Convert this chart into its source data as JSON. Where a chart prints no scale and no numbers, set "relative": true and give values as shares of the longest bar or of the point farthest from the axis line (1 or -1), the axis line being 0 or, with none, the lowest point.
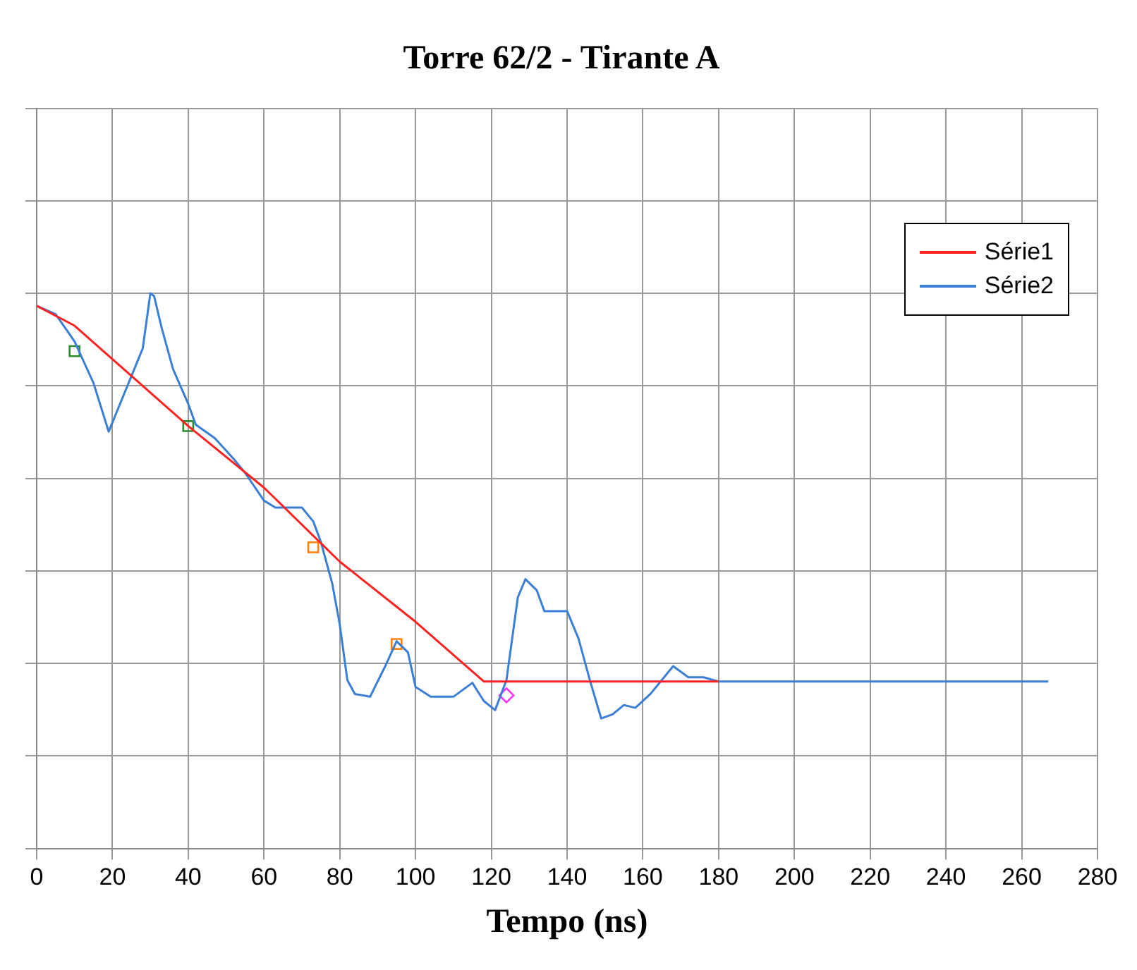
{
  "chart_data": {
    "type": "line",
    "title": "Torre 62/2 - Tirante A",
    "xlabel": "Tempo (ns)",
    "relative": true,
    "xlim": [
      0,
      280
    ],
    "xticks": [
      0,
      20,
      40,
      60,
      80,
      100,
      120,
      140,
      160,
      180,
      200,
      220,
      240,
      260,
      280
    ],
    "grid": true,
    "legend": "top right",
    "marker": "none",
    "line_style": "solid",
    "series": [
      {
        "name": "Série1",
        "color": "#ff2020",
        "x": [
          0,
          10,
          40,
          60,
          80,
          100,
          118,
          180
        ],
        "values": [
          0.973,
          0.93,
          0.713,
          0.58,
          0.42,
          0.29,
          0.161,
          0.161
        ]
      },
      {
        "name": "Série2",
        "color": "#3a7fd5",
        "x": [
          0,
          5,
          10,
          15,
          19,
          22,
          25,
          28,
          30,
          31,
          33,
          36,
          40,
          42,
          47,
          52,
          55,
          60,
          63,
          70,
          73,
          75,
          78,
          80,
          82,
          84,
          88,
          92,
          95,
          98,
          100,
          104,
          110,
          115,
          118,
          121,
          124,
          127,
          129,
          132,
          134,
          140,
          143,
          146,
          149,
          152,
          155,
          158,
          162,
          168,
          172,
          176,
          180,
          267
        ],
        "values": [
          0.973,
          0.955,
          0.896,
          0.806,
          0.701,
          0.761,
          0.821,
          0.881,
          1,
          0.994,
          0.925,
          0.836,
          0.761,
          0.716,
          0.687,
          0.642,
          0.612,
          0.552,
          0.537,
          0.537,
          0.507,
          0.463,
          0.373,
          0.284,
          0.164,
          0.134,
          0.128,
          0.194,
          0.248,
          0.224,
          0.149,
          0.128,
          0.128,
          0.158,
          0.119,
          0.099,
          0.164,
          0.343,
          0.382,
          0.358,
          0.313,
          0.313,
          0.254,
          0.164,
          0.081,
          0.09,
          0.11,
          0.104,
          0.134,
          0.194,
          0.17,
          0.17,
          0.161,
          0.161
        ]
      },
      {
        "type": "scatter",
        "color": "#2e8b2e",
        "marker": "square",
        "x": [
          10,
          40
        ],
        "values": [
          0.875,
          0.713
        ]
      },
      {
        "type": "scatter",
        "color": "#ff8000",
        "marker": "square",
        "x": [
          73,
          95
        ],
        "values": [
          0.451,
          0.242
        ]
      },
      {
        "type": "scatter",
        "color": "#ff33ff",
        "marker": "diamond",
        "x": [
          124
        ],
        "values": [
          0.131
        ]
      }
    ]
  }
}
